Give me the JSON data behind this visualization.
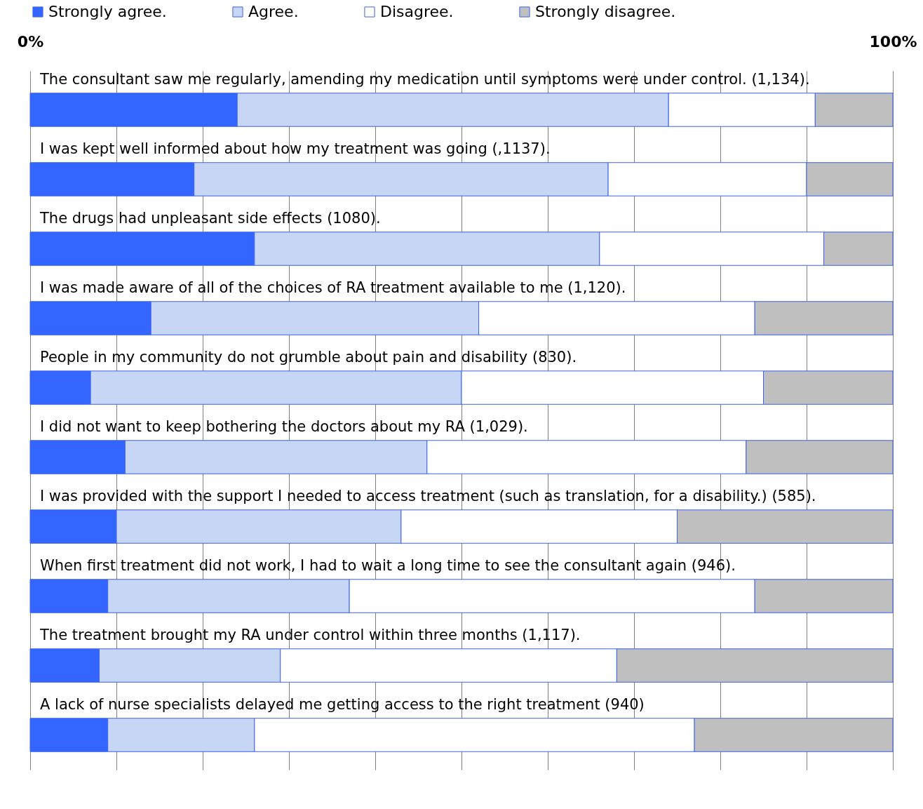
{
  "chart_data": {
    "type": "bar",
    "orientation": "horizontal",
    "stacked": true,
    "categories": [
      "The consultant saw me regularly, amending my medication until symptoms were under control. (1,134).",
      "I was kept well informed about how my treatment was going (,1137).",
      "The drugs had unpleasant side effects (1080).",
      "I was made aware of all of the choices of RA treatment available to me (1,120).",
      "People in my community do not grumble about pain and disability (830).",
      "I did not want to keep bothering the doctors about my RA (1,029).",
      "I was provided with the support I needed to access treatment (such as translation, for a disability.) (585).",
      "When first treatment did not work, I had to wait a long time to see the consultant again (946).",
      "The treatment brought my RA under control within three months (1,117).",
      "A lack of nurse specialists delayed me getting access to the right treatment (940)"
    ],
    "series": [
      {
        "name": "Strongly agree.",
        "color": "#3366ff",
        "values": [
          24,
          19,
          26,
          14,
          7,
          11,
          10,
          9,
          8,
          9
        ]
      },
      {
        "name": "Agree.",
        "color": "#c8d6f5",
        "values": [
          50,
          48,
          40,
          38,
          43,
          35,
          33,
          28,
          21,
          17
        ]
      },
      {
        "name": "Disagree.",
        "color": "#ffffff",
        "values": [
          17,
          23,
          26,
          32,
          35,
          37,
          32,
          47,
          39,
          51
        ]
      },
      {
        "name": "Strongly disagree.",
        "color": "#bfbfbf",
        "values": [
          9,
          10,
          8,
          16,
          15,
          17,
          25,
          16,
          32,
          23
        ]
      }
    ],
    "xlim": [
      0,
      100
    ],
    "xticks": [
      {
        "value": 0,
        "label": "0%"
      },
      {
        "value": 10,
        "label": null
      },
      {
        "value": 20,
        "label": null
      },
      {
        "value": 30,
        "label": null
      },
      {
        "value": 40,
        "label": null
      },
      {
        "value": 50,
        "label": null
      },
      {
        "value": 60,
        "label": null
      },
      {
        "value": 70,
        "label": null
      },
      {
        "value": 80,
        "label": null
      },
      {
        "value": 90,
        "label": null
      },
      {
        "value": 100,
        "label": "100%"
      }
    ],
    "grid": "x",
    "legend": "top"
  }
}
